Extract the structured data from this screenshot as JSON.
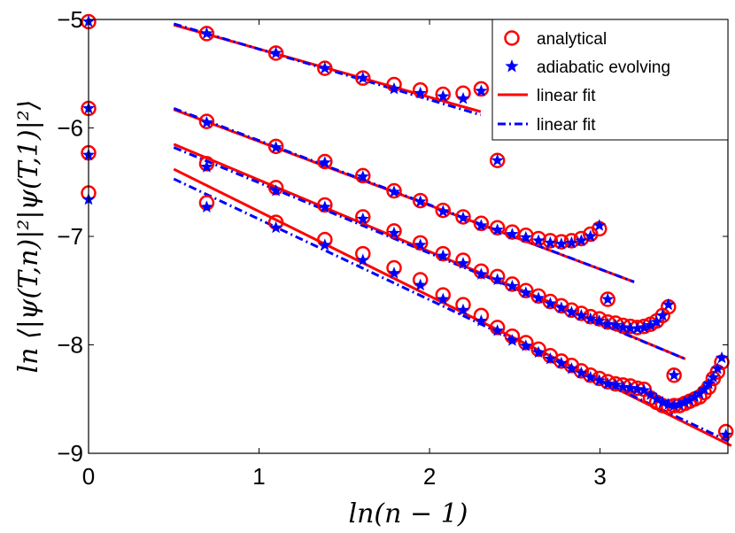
{
  "chart_data": {
    "type": "scatter",
    "xlabel": "ln(n − 1)",
    "ylabel": "ln ⟨|ψ(T,n)|²|ψ(T,1)|²⟩",
    "xlim": [
      0,
      3.75
    ],
    "ylim": [
      -9,
      -5
    ],
    "xticks": [
      "0",
      "1",
      "2",
      "3"
    ],
    "yticks": [
      "−5",
      "−6",
      "−7",
      "−8",
      "−9"
    ],
    "grid": false,
    "legend_position": "top-right",
    "legend": [
      "analytical",
      "adiabatic evolving",
      "linear fit",
      "linear fit"
    ],
    "colors": {
      "analytical": "#ff0000",
      "adiabatic": "#0000ff",
      "fit_solid": "#ff0000",
      "fit_dashdot": "#0000ff"
    },
    "groups": [
      {
        "analytical": [
          [
            0,
            -5.02
          ],
          [
            0.693,
            -5.13
          ],
          [
            1.099,
            -5.31
          ],
          [
            1.386,
            -5.45
          ],
          [
            1.609,
            -5.54
          ],
          [
            1.792,
            -5.6
          ],
          [
            1.946,
            -5.65
          ],
          [
            2.079,
            -5.69
          ],
          [
            2.197,
            -5.68
          ],
          [
            2.303,
            -5.64
          ],
          [
            2.398,
            -6.3
          ]
        ],
        "adiabatic": [
          [
            0,
            -5.02
          ],
          [
            0.693,
            -5.13
          ],
          [
            1.099,
            -5.31
          ],
          [
            1.386,
            -5.45
          ],
          [
            1.609,
            -5.54
          ],
          [
            1.792,
            -5.64
          ],
          [
            1.946,
            -5.68
          ],
          [
            2.079,
            -5.71
          ],
          [
            2.197,
            -5.73
          ],
          [
            2.303,
            -5.66
          ],
          [
            2.398,
            -6.3
          ]
        ],
        "fit_solid": [
          [
            0.5,
            -5.05
          ],
          [
            2.3,
            -5.85
          ]
        ],
        "fit_dashdot": [
          [
            0.5,
            -5.04
          ],
          [
            2.3,
            -5.88
          ]
        ]
      },
      {
        "analytical": [
          [
            0,
            -5.82
          ],
          [
            0.693,
            -5.94
          ],
          [
            1.099,
            -6.17
          ],
          [
            1.386,
            -6.31
          ],
          [
            1.609,
            -6.44
          ],
          [
            1.792,
            -6.58
          ],
          [
            1.946,
            -6.67
          ],
          [
            2.079,
            -6.76
          ],
          [
            2.197,
            -6.82
          ],
          [
            2.303,
            -6.88
          ],
          [
            2.398,
            -6.92
          ],
          [
            2.485,
            -6.96
          ],
          [
            2.565,
            -6.99
          ],
          [
            2.639,
            -7.02
          ],
          [
            2.708,
            -7.04
          ],
          [
            2.773,
            -7.05
          ],
          [
            2.833,
            -7.04
          ],
          [
            2.89,
            -7.02
          ],
          [
            2.944,
            -6.98
          ],
          [
            2.996,
            -6.93
          ],
          [
            3.045,
            -7.58
          ]
        ],
        "adiabatic": [
          [
            0,
            -5.82
          ],
          [
            0.693,
            -5.95
          ],
          [
            1.099,
            -6.18
          ],
          [
            1.386,
            -6.32
          ],
          [
            1.609,
            -6.45
          ],
          [
            1.792,
            -6.59
          ],
          [
            1.946,
            -6.68
          ],
          [
            2.079,
            -6.77
          ],
          [
            2.197,
            -6.83
          ],
          [
            2.303,
            -6.9
          ],
          [
            2.398,
            -6.94
          ],
          [
            2.485,
            -6.98
          ],
          [
            2.565,
            -7.01
          ],
          [
            2.639,
            -7.04
          ],
          [
            2.708,
            -7.06
          ],
          [
            2.773,
            -7.07
          ],
          [
            2.833,
            -7.06
          ],
          [
            2.89,
            -7.04
          ],
          [
            2.944,
            -7.0
          ],
          [
            2.996,
            -6.9
          ],
          [
            3.045,
            -7.58
          ]
        ],
        "fit_solid": [
          [
            0.5,
            -5.83
          ],
          [
            3.2,
            -7.42
          ]
        ],
        "fit_dashdot": [
          [
            0.5,
            -5.82
          ],
          [
            3.2,
            -7.42
          ]
        ]
      },
      {
        "analytical": [
          [
            0,
            -6.23
          ],
          [
            0.693,
            -6.33
          ],
          [
            1.099,
            -6.55
          ],
          [
            1.386,
            -6.71
          ],
          [
            1.609,
            -6.82
          ],
          [
            1.792,
            -6.95
          ],
          [
            1.946,
            -7.06
          ],
          [
            2.079,
            -7.16
          ],
          [
            2.197,
            -7.22
          ],
          [
            2.303,
            -7.32
          ],
          [
            2.398,
            -7.37
          ],
          [
            2.485,
            -7.44
          ],
          [
            2.565,
            -7.5
          ],
          [
            2.639,
            -7.55
          ],
          [
            2.708,
            -7.6
          ],
          [
            2.773,
            -7.64
          ],
          [
            2.833,
            -7.68
          ],
          [
            2.89,
            -7.71
          ],
          [
            2.944,
            -7.74
          ],
          [
            2.996,
            -7.76
          ],
          [
            3.045,
            -7.79
          ],
          [
            3.091,
            -7.8
          ],
          [
            3.135,
            -7.82
          ],
          [
            3.178,
            -7.83
          ],
          [
            3.219,
            -7.84
          ],
          [
            3.258,
            -7.83
          ],
          [
            3.296,
            -7.81
          ],
          [
            3.332,
            -7.78
          ],
          [
            3.367,
            -7.73
          ],
          [
            3.401,
            -7.65
          ],
          [
            3.434,
            -8.28
          ]
        ],
        "adiabatic": [
          [
            0,
            -6.25
          ],
          [
            0.693,
            -6.36
          ],
          [
            1.099,
            -6.58
          ],
          [
            1.386,
            -6.73
          ],
          [
            1.609,
            -6.84
          ],
          [
            1.792,
            -6.97
          ],
          [
            1.946,
            -7.08
          ],
          [
            2.079,
            -7.18
          ],
          [
            2.197,
            -7.25
          ],
          [
            2.303,
            -7.35
          ],
          [
            2.398,
            -7.4
          ],
          [
            2.485,
            -7.46
          ],
          [
            2.565,
            -7.52
          ],
          [
            2.639,
            -7.57
          ],
          [
            2.708,
            -7.62
          ],
          [
            2.773,
            -7.66
          ],
          [
            2.833,
            -7.7
          ],
          [
            2.89,
            -7.73
          ],
          [
            2.944,
            -7.76
          ],
          [
            2.996,
            -7.78
          ],
          [
            3.045,
            -7.81
          ],
          [
            3.091,
            -7.82
          ],
          [
            3.135,
            -7.84
          ],
          [
            3.178,
            -7.85
          ],
          [
            3.219,
            -7.85
          ],
          [
            3.258,
            -7.84
          ],
          [
            3.296,
            -7.82
          ],
          [
            3.332,
            -7.79
          ],
          [
            3.367,
            -7.73
          ],
          [
            3.401,
            -7.63
          ],
          [
            3.434,
            -8.28
          ]
        ],
        "fit_solid": [
          [
            0.5,
            -6.15
          ],
          [
            3.5,
            -8.13
          ]
        ],
        "fit_dashdot": [
          [
            0.5,
            -6.18
          ],
          [
            3.5,
            -8.13
          ]
        ]
      },
      {
        "analytical": [
          [
            0,
            -6.6
          ],
          [
            0.693,
            -6.69
          ],
          [
            1.099,
            -6.87
          ],
          [
            1.386,
            -7.03
          ],
          [
            1.609,
            -7.16
          ],
          [
            1.792,
            -7.29
          ],
          [
            1.946,
            -7.4
          ],
          [
            2.079,
            -7.54
          ],
          [
            2.197,
            -7.63
          ],
          [
            2.303,
            -7.73
          ],
          [
            2.398,
            -7.84
          ],
          [
            2.485,
            -7.92
          ],
          [
            2.565,
            -7.98
          ],
          [
            2.639,
            -8.04
          ],
          [
            2.708,
            -8.1
          ],
          [
            2.773,
            -8.15
          ],
          [
            2.833,
            -8.19
          ],
          [
            2.89,
            -8.24
          ],
          [
            2.944,
            -8.28
          ],
          [
            2.996,
            -8.31
          ],
          [
            3.045,
            -8.34
          ],
          [
            3.091,
            -8.36
          ],
          [
            3.135,
            -8.37
          ],
          [
            3.178,
            -8.38
          ],
          [
            3.219,
            -8.4
          ],
          [
            3.258,
            -8.41
          ],
          [
            3.296,
            -8.49
          ],
          [
            3.332,
            -8.53
          ],
          [
            3.367,
            -8.56
          ],
          [
            3.401,
            -8.57
          ],
          [
            3.434,
            -8.56
          ],
          [
            3.466,
            -8.56
          ],
          [
            3.497,
            -8.54
          ],
          [
            3.526,
            -8.52
          ],
          [
            3.555,
            -8.5
          ],
          [
            3.584,
            -8.48
          ],
          [
            3.611,
            -8.44
          ],
          [
            3.638,
            -8.39
          ],
          [
            3.664,
            -8.31
          ],
          [
            3.689,
            -8.25
          ],
          [
            3.714,
            -8.16
          ],
          [
            3.738,
            -8.8
          ]
        ],
        "adiabatic": [
          [
            0,
            -6.66
          ],
          [
            0.693,
            -6.73
          ],
          [
            1.099,
            -6.92
          ],
          [
            1.386,
            -7.08
          ],
          [
            1.609,
            -7.22
          ],
          [
            1.792,
            -7.34
          ],
          [
            1.946,
            -7.45
          ],
          [
            2.079,
            -7.58
          ],
          [
            2.197,
            -7.68
          ],
          [
            2.303,
            -7.78
          ],
          [
            2.398,
            -7.87
          ],
          [
            2.485,
            -7.96
          ],
          [
            2.565,
            -8.01
          ],
          [
            2.639,
            -8.07
          ],
          [
            2.708,
            -8.13
          ],
          [
            2.773,
            -8.17
          ],
          [
            2.833,
            -8.22
          ],
          [
            2.89,
            -8.26
          ],
          [
            2.944,
            -8.3
          ],
          [
            2.996,
            -8.33
          ],
          [
            3.045,
            -8.36
          ],
          [
            3.091,
            -8.37
          ],
          [
            3.135,
            -8.39
          ],
          [
            3.178,
            -8.4
          ],
          [
            3.219,
            -8.41
          ],
          [
            3.258,
            -8.42
          ],
          [
            3.296,
            -8.46
          ],
          [
            3.332,
            -8.5
          ],
          [
            3.367,
            -8.53
          ],
          [
            3.401,
            -8.55
          ],
          [
            3.434,
            -8.56
          ],
          [
            3.466,
            -8.55
          ],
          [
            3.497,
            -8.53
          ],
          [
            3.526,
            -8.51
          ],
          [
            3.555,
            -8.48
          ],
          [
            3.584,
            -8.45
          ],
          [
            3.611,
            -8.41
          ],
          [
            3.638,
            -8.36
          ],
          [
            3.664,
            -8.3
          ],
          [
            3.689,
            -8.22
          ],
          [
            3.714,
            -8.12
          ],
          [
            3.738,
            -8.83
          ]
        ],
        "fit_solid": [
          [
            0.5,
            -6.38
          ],
          [
            3.77,
            -8.93
          ]
        ],
        "fit_dashdot": [
          [
            0.5,
            -6.47
          ],
          [
            3.77,
            -8.9
          ]
        ]
      }
    ]
  }
}
